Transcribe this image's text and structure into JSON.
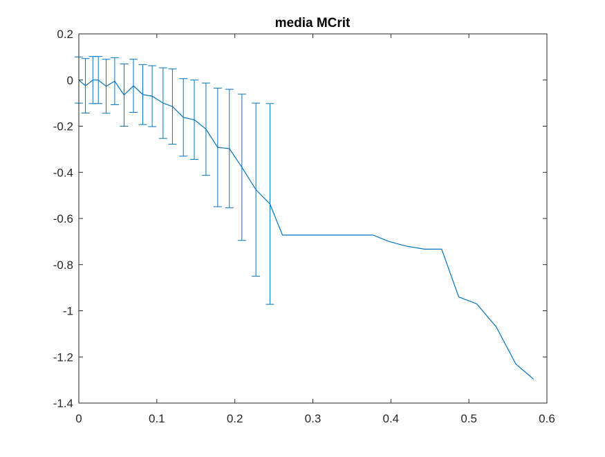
{
  "chart_data": {
    "type": "line",
    "title": "media MCrit",
    "xlabel": "",
    "ylabel": "",
    "xlim": [
      0,
      0.6
    ],
    "ylim": [
      -1.4,
      0.2
    ],
    "grid": false,
    "legend": "none",
    "x_ticks": [
      "0",
      "0.1",
      "0.2",
      "0.3",
      "0.4",
      "0.5",
      "0.6"
    ],
    "y_ticks": [
      "0.2",
      "0",
      "-0.2",
      "-0.4",
      "-0.6",
      "-0.8",
      "-1",
      "-1.2",
      "-1.4"
    ],
    "colors": {
      "series": "#0072BD",
      "axes": "#262626"
    },
    "series": [
      {
        "x": [
          0,
          0.0085,
          0.018,
          0.025,
          0.035,
          0.046,
          0.058,
          0.07,
          0.082,
          0.094,
          0.108,
          0.12,
          0.134,
          0.148,
          0.163,
          0.178,
          0.193,
          0.209,
          0.227,
          0.245,
          0.261,
          0.3,
          0.377,
          0.398,
          0.42,
          0.443,
          0.465,
          0.487,
          0.51,
          0.535,
          0.56,
          0.583
        ],
        "y": [
          0.0,
          -0.025,
          0.0,
          0.0,
          -0.027,
          -0.005,
          -0.065,
          -0.025,
          -0.063,
          -0.07,
          -0.1,
          -0.115,
          -0.162,
          -0.172,
          -0.213,
          -0.292,
          -0.297,
          -0.378,
          -0.475,
          -0.537,
          -0.672,
          -0.672,
          -0.672,
          -0.7,
          -0.72,
          -0.733,
          -0.733,
          -0.94,
          -0.97,
          -1.07,
          -1.23,
          -1.297
        ],
        "err": [
          0.1,
          0.118,
          0.102,
          0.102,
          0.117,
          0.102,
          0.135,
          0.115,
          0.13,
          0.132,
          0.153,
          0.163,
          0.168,
          0.172,
          0.2,
          0.257,
          0.257,
          0.317,
          0.375,
          0.435,
          null,
          null,
          null,
          null,
          null,
          null,
          null,
          null,
          null,
          null,
          null,
          null
        ]
      }
    ]
  }
}
